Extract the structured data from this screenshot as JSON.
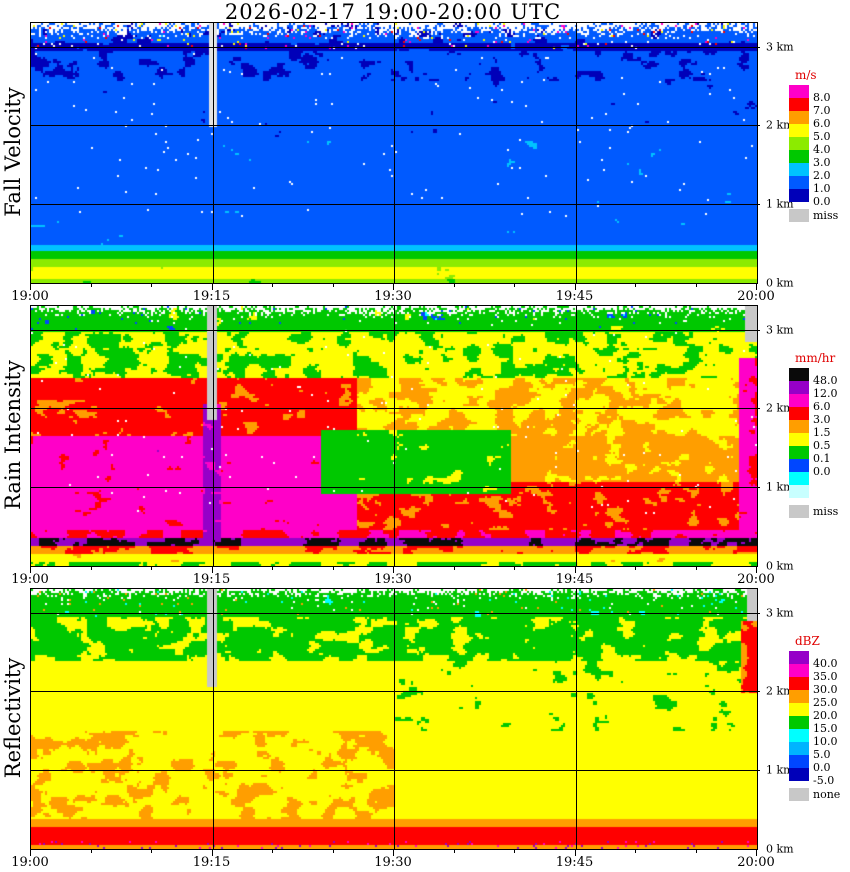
{
  "title": "2026-02-17  19:00-20:00 UTC",
  "date": "2026-02-17",
  "time_range_utc": [
    "19:00",
    "20:00"
  ],
  "chart_data": [
    {
      "type": "heatmap",
      "panel_label": "Fall Velocity",
      "unit": "m/s",
      "x_ticks": [
        "19:00",
        "19:15",
        "19:30",
        "19:45",
        "20:00"
      ],
      "y_ticks": [
        "0 km",
        "1 km",
        "2 km",
        "3 km"
      ],
      "y_max_km": 3.3,
      "legend": {
        "unit": "m/s",
        "entries": [
          {
            "c": "#ff00c8",
            "l": "8.0"
          },
          {
            "c": "#ff0000",
            "l": "7.0"
          },
          {
            "c": "#ff9e00",
            "l": "6.0"
          },
          {
            "c": "#ffff00",
            "l": "5.0"
          },
          {
            "c": "#8ceb00",
            "l": "4.0"
          },
          {
            "c": "#00c800",
            "l": "3.0"
          },
          {
            "c": "#00c3ff",
            "l": "2.0"
          },
          {
            "c": "#005aff",
            "l": "1.0"
          },
          {
            "c": "#0000b9",
            "l": "0.0"
          }
        ],
        "missing": {
          "c": "#c8c8c8",
          "l": "miss"
        }
      },
      "description": "Doppler fall velocity time-height section. Mostly 1-2 m/s (blue) above ~0.5 km with patches below 1 m/s (dark blue); sharp melting-layer transition near 0.3-0.5 km to 3-6 m/s (green/yellow) toward the ground. Noisy speckled echo top near 3 km with white gaps and magenta/red specks; narrow data gap around 19:15.",
      "render": {
        "seed": 11,
        "freq": [
          50,
          26
        ],
        "boundaries": [
          1,
          2,
          3,
          4,
          5,
          6,
          7,
          8
        ],
        "colors": [
          "#0000b9",
          "#005aff",
          "#00c3ff",
          "#00c800",
          "#8ceb00",
          "#ffff00",
          "#ff9e00",
          "#ff0000",
          "#ff00c8"
        ],
        "bands": [
          {
            "h0": 0.0,
            "h1": 0.012,
            "base": 4.3,
            "amp": 0.5
          },
          {
            "h0": 0.012,
            "h1": 0.06,
            "base": 5.4,
            "amp": 0.6
          },
          {
            "h0": 0.06,
            "h1": 0.09,
            "base": 4.4,
            "amp": 0.45
          },
          {
            "h0": 0.09,
            "h1": 0.12,
            "base": 3.4,
            "amp": 0.45
          },
          {
            "h0": 0.12,
            "h1": 0.15,
            "base": 2.5,
            "amp": 0.5
          },
          {
            "h0": 0.15,
            "h1": 0.55,
            "base": 1.6,
            "amp": 0.6
          },
          {
            "h0": 0.55,
            "h1": 0.78,
            "base": 1.45,
            "amp": 0.7
          },
          {
            "h0": 0.78,
            "h1": 0.895,
            "base": 1.2,
            "amp": 0.75
          },
          {
            "h0": 0.895,
            "h1": 0.925,
            "base": 0.7,
            "amp": 0.55
          },
          {
            "h0": 0.925,
            "h1": 1.01,
            "base": 1.3,
            "amp": 1.0
          }
        ],
        "top_white": {
          "h0": 0.935,
          "pow": 1.4
        },
        "speckle": [
          {
            "h0": 0.9,
            "h1": 1.0,
            "p": 0.05,
            "colors": [
              "#ff00c8",
              "#ff0000",
              "#ffff00",
              "#ffffff",
              "#ffffff"
            ]
          },
          {
            "h0": 0.25,
            "h1": 0.9,
            "p": 0.004,
            "colors": [
              "#ffffff"
            ]
          }
        ],
        "missing": [
          {
            "t0": 0.2445,
            "t1": 0.2575,
            "h0": 0.6,
            "color": "#e4e4e4"
          }
        ]
      }
    },
    {
      "type": "heatmap",
      "panel_label": "Rain Intensity",
      "unit": "mm/hr",
      "x_ticks": [
        "19:00",
        "19:15",
        "19:30",
        "19:45",
        "20:00"
      ],
      "y_ticks": [
        "0 km",
        "1 km",
        "2 km",
        "3 km"
      ],
      "y_max_km": 3.3,
      "legend": {
        "unit": "mm/hr",
        "entries": [
          {
            "c": "#0a0a0a",
            "l": "48.0"
          },
          {
            "c": "#9600c8",
            "l": "12.0"
          },
          {
            "c": "#ff00c8",
            "l": "6.0"
          },
          {
            "c": "#ff0000",
            "l": "3.0"
          },
          {
            "c": "#ff9e00",
            "l": "1.5"
          },
          {
            "c": "#ffff00",
            "l": "0.5"
          },
          {
            "c": "#00c800",
            "l": "0.1"
          },
          {
            "c": "#0046ff",
            "l": "0.0"
          },
          {
            "c": "#00ffff",
            "l": ""
          },
          {
            "c": "#c8ffff",
            "l": ""
          }
        ],
        "missing": {
          "c": "#c8c8c8",
          "l": "miss"
        }
      },
      "description": "Rain intensity time-height section. Intense bright band exceeding 48 mm/hr (black/purple) near 0.3 km; heavy rain 6-12 mm/hr (magenta/red) through 0.5-1.7 km before ~19:27, weakening to 0.5-3 mm/hr (yellow/orange) afterwards with green/blue pockets near 19:30 and 19:45; light rain 0.1-0.5 mm/hr (green/blue) above 2.4 km with noisy speckled top; gray missing-data column at 19:15 and at the far right edge aloft.",
      "render": {
        "seed": 23,
        "freq": [
          46,
          24
        ],
        "boundaries": [
          0.02,
          0.05,
          0.1,
          0.5,
          1.5,
          3,
          6,
          12,
          48
        ],
        "colors": [
          "#c8ffff",
          "#00ffff",
          "#0046ff",
          "#00c800",
          "#ffff00",
          "#ff9e00",
          "#ff0000",
          "#ff00c8",
          "#9600c8",
          "#0a0a0a"
        ],
        "bands": [
          {
            "h0": 0.1,
            "h1": 0.62,
            "t0": 0.236,
            "t1": 0.263,
            "base": 15,
            "amp": 8
          },
          {
            "h0": 0.28,
            "h1": 0.52,
            "t0": 0.4,
            "t1": 0.66,
            "base": 0.35,
            "amp": 0.32
          },
          {
            "h0": 0.13,
            "h1": 0.8,
            "t0": 0.975,
            "t1": 1.0,
            "base": 7,
            "amp": 4
          },
          {
            "h0": 0.0,
            "h1": 0.018,
            "base": 0.5,
            "amp": 0.35
          },
          {
            "h0": 0.018,
            "h1": 0.05,
            "base": 1.1,
            "amp": 0.7
          },
          {
            "h0": 0.05,
            "h1": 0.075,
            "base": 2.8,
            "amp": 1.5
          },
          {
            "h0": 0.075,
            "h1": 0.108,
            "base": 46,
            "amp": 18
          },
          {
            "h0": 0.108,
            "h1": 0.135,
            "base": 6,
            "amp": 3
          },
          {
            "h0": 0.135,
            "h1": 0.5,
            "t1": 0.45,
            "base": 8.5,
            "amp": 4.5
          },
          {
            "h0": 0.135,
            "h1": 0.32,
            "t0": 0.45,
            "base": 3.5,
            "amp": 1.8
          },
          {
            "h0": 0.32,
            "h1": 0.5,
            "t0": 0.45,
            "base": 1.8,
            "amp": 1.2
          },
          {
            "h0": 0.5,
            "h1": 0.72,
            "t1": 0.45,
            "base": 3.8,
            "amp": 2.2
          },
          {
            "h0": 0.5,
            "h1": 0.72,
            "t0": 0.45,
            "base": 1.4,
            "amp": 0.9
          },
          {
            "h0": 0.72,
            "h1": 0.9,
            "base": 0.55,
            "amp": 0.5
          },
          {
            "h0": 0.9,
            "h1": 1.01,
            "base": 0.3,
            "amp": 0.35
          }
        ],
        "top_white": {
          "h0": 0.945,
          "pow": 1.8
        },
        "speckle": [
          {
            "h0": 0.93,
            "h1": 1.0,
            "p": 0.05,
            "colors": [
              "#ffffff",
              "#0046ff",
              "#00c800"
            ]
          },
          {
            "h0": 0.2,
            "h1": 0.93,
            "p": 0.004,
            "colors": [
              "#ffffff"
            ]
          }
        ],
        "missing": [
          {
            "t0": 0.2435,
            "t1": 0.2575,
            "h0": 0.56,
            "color": "#c8c8c8"
          },
          {
            "t0": 0.984,
            "t1": 1.0,
            "h0": 0.86,
            "color": "#c8c8c8"
          }
        ]
      }
    },
    {
      "type": "heatmap",
      "panel_label": "Reflectivity",
      "unit": "dBZ",
      "x_ticks": [
        "19:00",
        "19:15",
        "19:30",
        "19:45",
        "20:00"
      ],
      "y_ticks": [
        "0 km",
        "1 km",
        "2 km",
        "3 km"
      ],
      "y_max_km": 3.3,
      "legend": {
        "unit": "dBZ",
        "entries": [
          {
            "c": "#9600c8",
            "l": "40.0"
          },
          {
            "c": "#ff00c8",
            "l": "35.0"
          },
          {
            "c": "#ff0000",
            "l": "30.0"
          },
          {
            "c": "#ff9e00",
            "l": "25.0"
          },
          {
            "c": "#ffff00",
            "l": "20.0"
          },
          {
            "c": "#00c800",
            "l": "15.0"
          },
          {
            "c": "#00ffff",
            "l": "10.0"
          },
          {
            "c": "#00b4ff",
            "l": "5.0"
          },
          {
            "c": "#0046ff",
            "l": "0.0"
          },
          {
            "c": "#0000b9",
            "l": "-5.0"
          }
        ],
        "missing": {
          "c": "#c8c8c8",
          "l": "none"
        }
      },
      "description": "Radar reflectivity time-height section. 30-35 dBZ (red) layer below 0.3 km with purple/magenta specks at the surface; mostly 20-25 dBZ (yellow) between 0.4 and 2.3 km with 25-30 dBZ (orange) patches before 19:30; decreasing to 15-20 dBZ (green) with 10-15 dBZ (cyan) patches near 3 km; gray missing-data column at 19:15 and at the far right edge aloft.",
      "render": {
        "seed": 37,
        "freq": [
          44,
          22
        ],
        "boundaries": [
          0,
          5,
          10,
          15,
          20,
          25,
          30,
          35,
          40
        ],
        "colors": [
          "#0000b9",
          "#0046ff",
          "#00b4ff",
          "#00ffff",
          "#00c800",
          "#ffff00",
          "#ff9e00",
          "#ff0000",
          "#ff00c8",
          "#9600c8"
        ],
        "bands": [
          {
            "h0": 0.6,
            "h1": 0.88,
            "t0": 0.978,
            "t1": 1.0,
            "base": 31,
            "amp": 5
          },
          {
            "h0": 0.0,
            "h1": 0.018,
            "base": 27,
            "amp": 2
          },
          {
            "h0": 0.018,
            "h1": 0.085,
            "base": 32.5,
            "amp": 2.5
          },
          {
            "h0": 0.085,
            "h1": 0.115,
            "base": 28,
            "amp": 2
          },
          {
            "h0": 0.115,
            "h1": 0.45,
            "t1": 0.5,
            "base": 24.5,
            "amp": 2.8
          },
          {
            "h0": 0.115,
            "h1": 0.45,
            "t0": 0.5,
            "base": 23,
            "amp": 2.2
          },
          {
            "h0": 0.45,
            "h1": 0.72,
            "t1": 0.5,
            "base": 22.5,
            "amp": 2.6
          },
          {
            "h0": 0.45,
            "h1": 0.72,
            "t0": 0.5,
            "base": 21.5,
            "amp": 3.2
          },
          {
            "h0": 0.72,
            "h1": 0.89,
            "base": 19.5,
            "amp": 3.0
          },
          {
            "h0": 0.89,
            "h1": 1.01,
            "base": 17,
            "amp": 3.4
          }
        ],
        "top_white": {
          "h0": 0.952,
          "pow": 2.0
        },
        "speckle": [
          {
            "h0": 0.0,
            "h1": 0.03,
            "p": 0.05,
            "colors": [
              "#9600c8",
              "#ff00c8"
            ]
          },
          {
            "h0": 0.9,
            "h1": 1.0,
            "p": 0.035,
            "colors": [
              "#ff9e00",
              "#ffffff",
              "#00ffff"
            ]
          }
        ],
        "missing": [
          {
            "t0": 0.2435,
            "t1": 0.2575,
            "h0": 0.62,
            "color": "#c8c8c8"
          },
          {
            "t0": 0.986,
            "t1": 1.0,
            "h0": 0.88,
            "color": "#c8c8c8"
          }
        ]
      }
    }
  ]
}
